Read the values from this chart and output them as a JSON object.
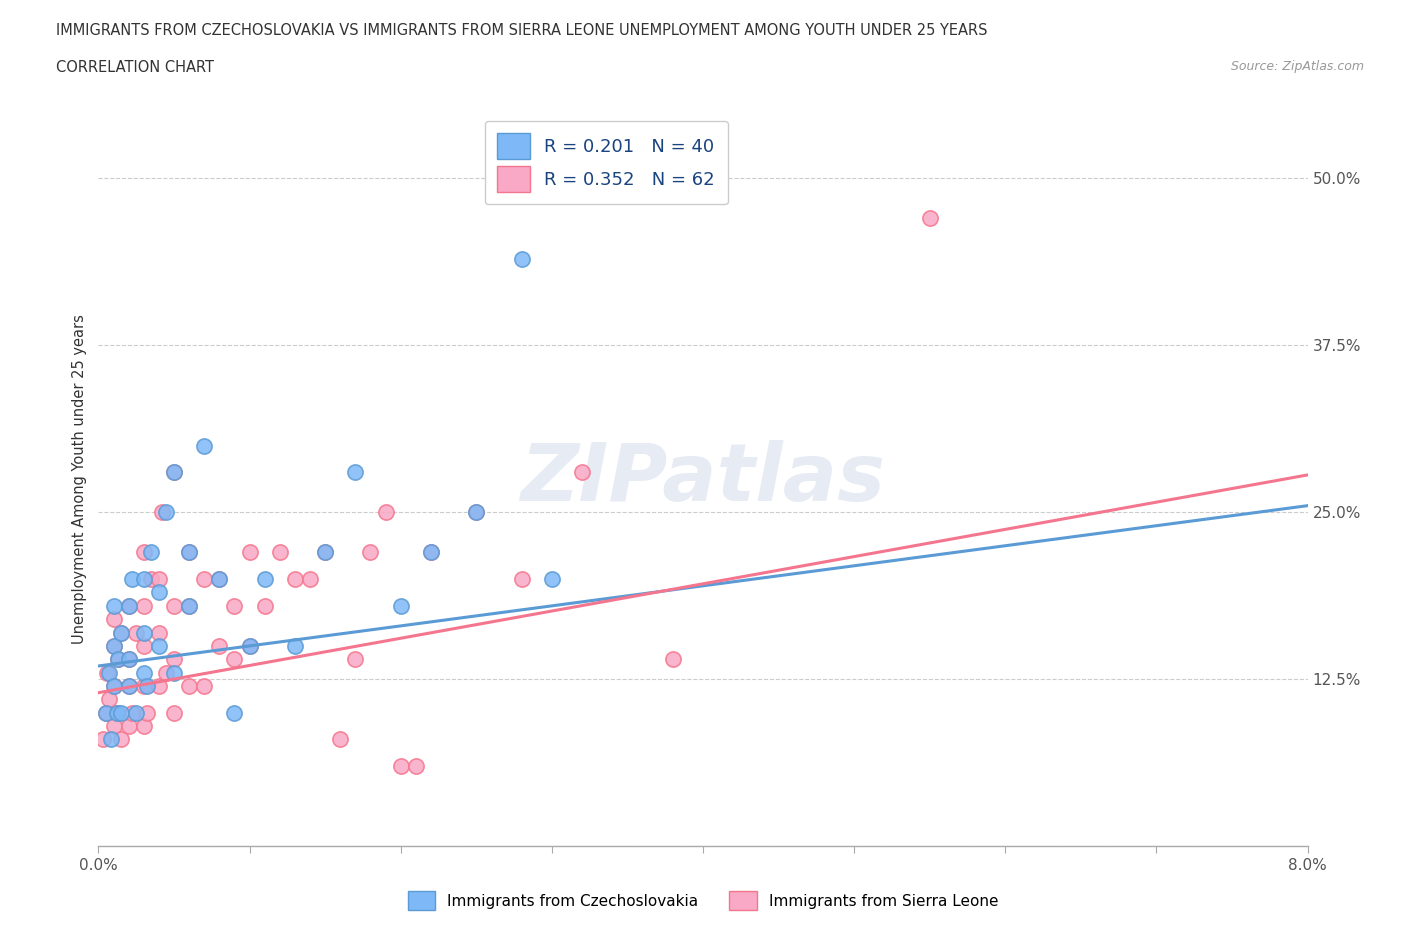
{
  "title_line1": "IMMIGRANTS FROM CZECHOSLOVAKIA VS IMMIGRANTS FROM SIERRA LEONE UNEMPLOYMENT AMONG YOUTH UNDER 25 YEARS",
  "title_line2": "CORRELATION CHART",
  "source_text": "Source: ZipAtlas.com",
  "ylabel": "Unemployment Among Youth under 25 years",
  "xlim": [
    0.0,
    0.08
  ],
  "ylim": [
    0.0,
    0.55
  ],
  "xticks": [
    0.0,
    0.01,
    0.02,
    0.03,
    0.04,
    0.05,
    0.06,
    0.07,
    0.08
  ],
  "xticklabels": [
    "0.0%",
    "",
    "",
    "",
    "",
    "",
    "",
    "",
    "8.0%"
  ],
  "ytick_positions": [
    0.0,
    0.125,
    0.25,
    0.375,
    0.5
  ],
  "yticklabels": [
    "",
    "12.5%",
    "25.0%",
    "37.5%",
    "50.0%"
  ],
  "color_czech": "#7EB8F7",
  "color_sierra": "#F9A8C5",
  "color_line_czech": "#5B9BD5",
  "color_line_sierra": "#F4768E",
  "R_czech": 0.201,
  "N_czech": 40,
  "R_sierra": 0.352,
  "N_sierra": 62,
  "watermark": "ZIPatlas",
  "legend_labels": [
    "Immigrants from Czechoslovakia",
    "Immigrants from Sierra Leone"
  ],
  "czech_x": [
    0.0005,
    0.0007,
    0.0008,
    0.001,
    0.001,
    0.001,
    0.0012,
    0.0013,
    0.0015,
    0.0015,
    0.002,
    0.002,
    0.002,
    0.0022,
    0.0025,
    0.003,
    0.003,
    0.003,
    0.0032,
    0.0035,
    0.004,
    0.004,
    0.0045,
    0.005,
    0.005,
    0.006,
    0.006,
    0.007,
    0.008,
    0.009,
    0.01,
    0.011,
    0.013,
    0.015,
    0.017,
    0.02,
    0.022,
    0.025,
    0.028,
    0.03
  ],
  "czech_y": [
    0.1,
    0.13,
    0.08,
    0.12,
    0.15,
    0.18,
    0.1,
    0.14,
    0.1,
    0.16,
    0.12,
    0.14,
    0.18,
    0.2,
    0.1,
    0.13,
    0.16,
    0.2,
    0.12,
    0.22,
    0.15,
    0.19,
    0.25,
    0.13,
    0.28,
    0.18,
    0.22,
    0.3,
    0.2,
    0.1,
    0.15,
    0.2,
    0.15,
    0.22,
    0.28,
    0.18,
    0.22,
    0.25,
    0.44,
    0.2
  ],
  "sierra_x": [
    0.0003,
    0.0005,
    0.0006,
    0.0007,
    0.001,
    0.001,
    0.001,
    0.001,
    0.0012,
    0.0013,
    0.0015,
    0.0015,
    0.002,
    0.002,
    0.002,
    0.002,
    0.0022,
    0.0025,
    0.003,
    0.003,
    0.003,
    0.003,
    0.003,
    0.0032,
    0.0035,
    0.004,
    0.004,
    0.004,
    0.0042,
    0.0045,
    0.005,
    0.005,
    0.005,
    0.005,
    0.006,
    0.006,
    0.006,
    0.007,
    0.007,
    0.008,
    0.008,
    0.009,
    0.009,
    0.01,
    0.01,
    0.011,
    0.012,
    0.013,
    0.014,
    0.015,
    0.016,
    0.017,
    0.018,
    0.019,
    0.02,
    0.021,
    0.022,
    0.025,
    0.028,
    0.032,
    0.038,
    0.055
  ],
  "sierra_y": [
    0.08,
    0.1,
    0.13,
    0.11,
    0.09,
    0.12,
    0.15,
    0.17,
    0.1,
    0.14,
    0.08,
    0.16,
    0.09,
    0.12,
    0.14,
    0.18,
    0.1,
    0.16,
    0.09,
    0.12,
    0.15,
    0.18,
    0.22,
    0.1,
    0.2,
    0.12,
    0.16,
    0.2,
    0.25,
    0.13,
    0.1,
    0.14,
    0.18,
    0.28,
    0.12,
    0.18,
    0.22,
    0.12,
    0.2,
    0.15,
    0.2,
    0.14,
    0.18,
    0.15,
    0.22,
    0.18,
    0.22,
    0.2,
    0.2,
    0.22,
    0.08,
    0.14,
    0.22,
    0.25,
    0.06,
    0.06,
    0.22,
    0.25,
    0.2,
    0.28,
    0.14,
    0.47
  ]
}
